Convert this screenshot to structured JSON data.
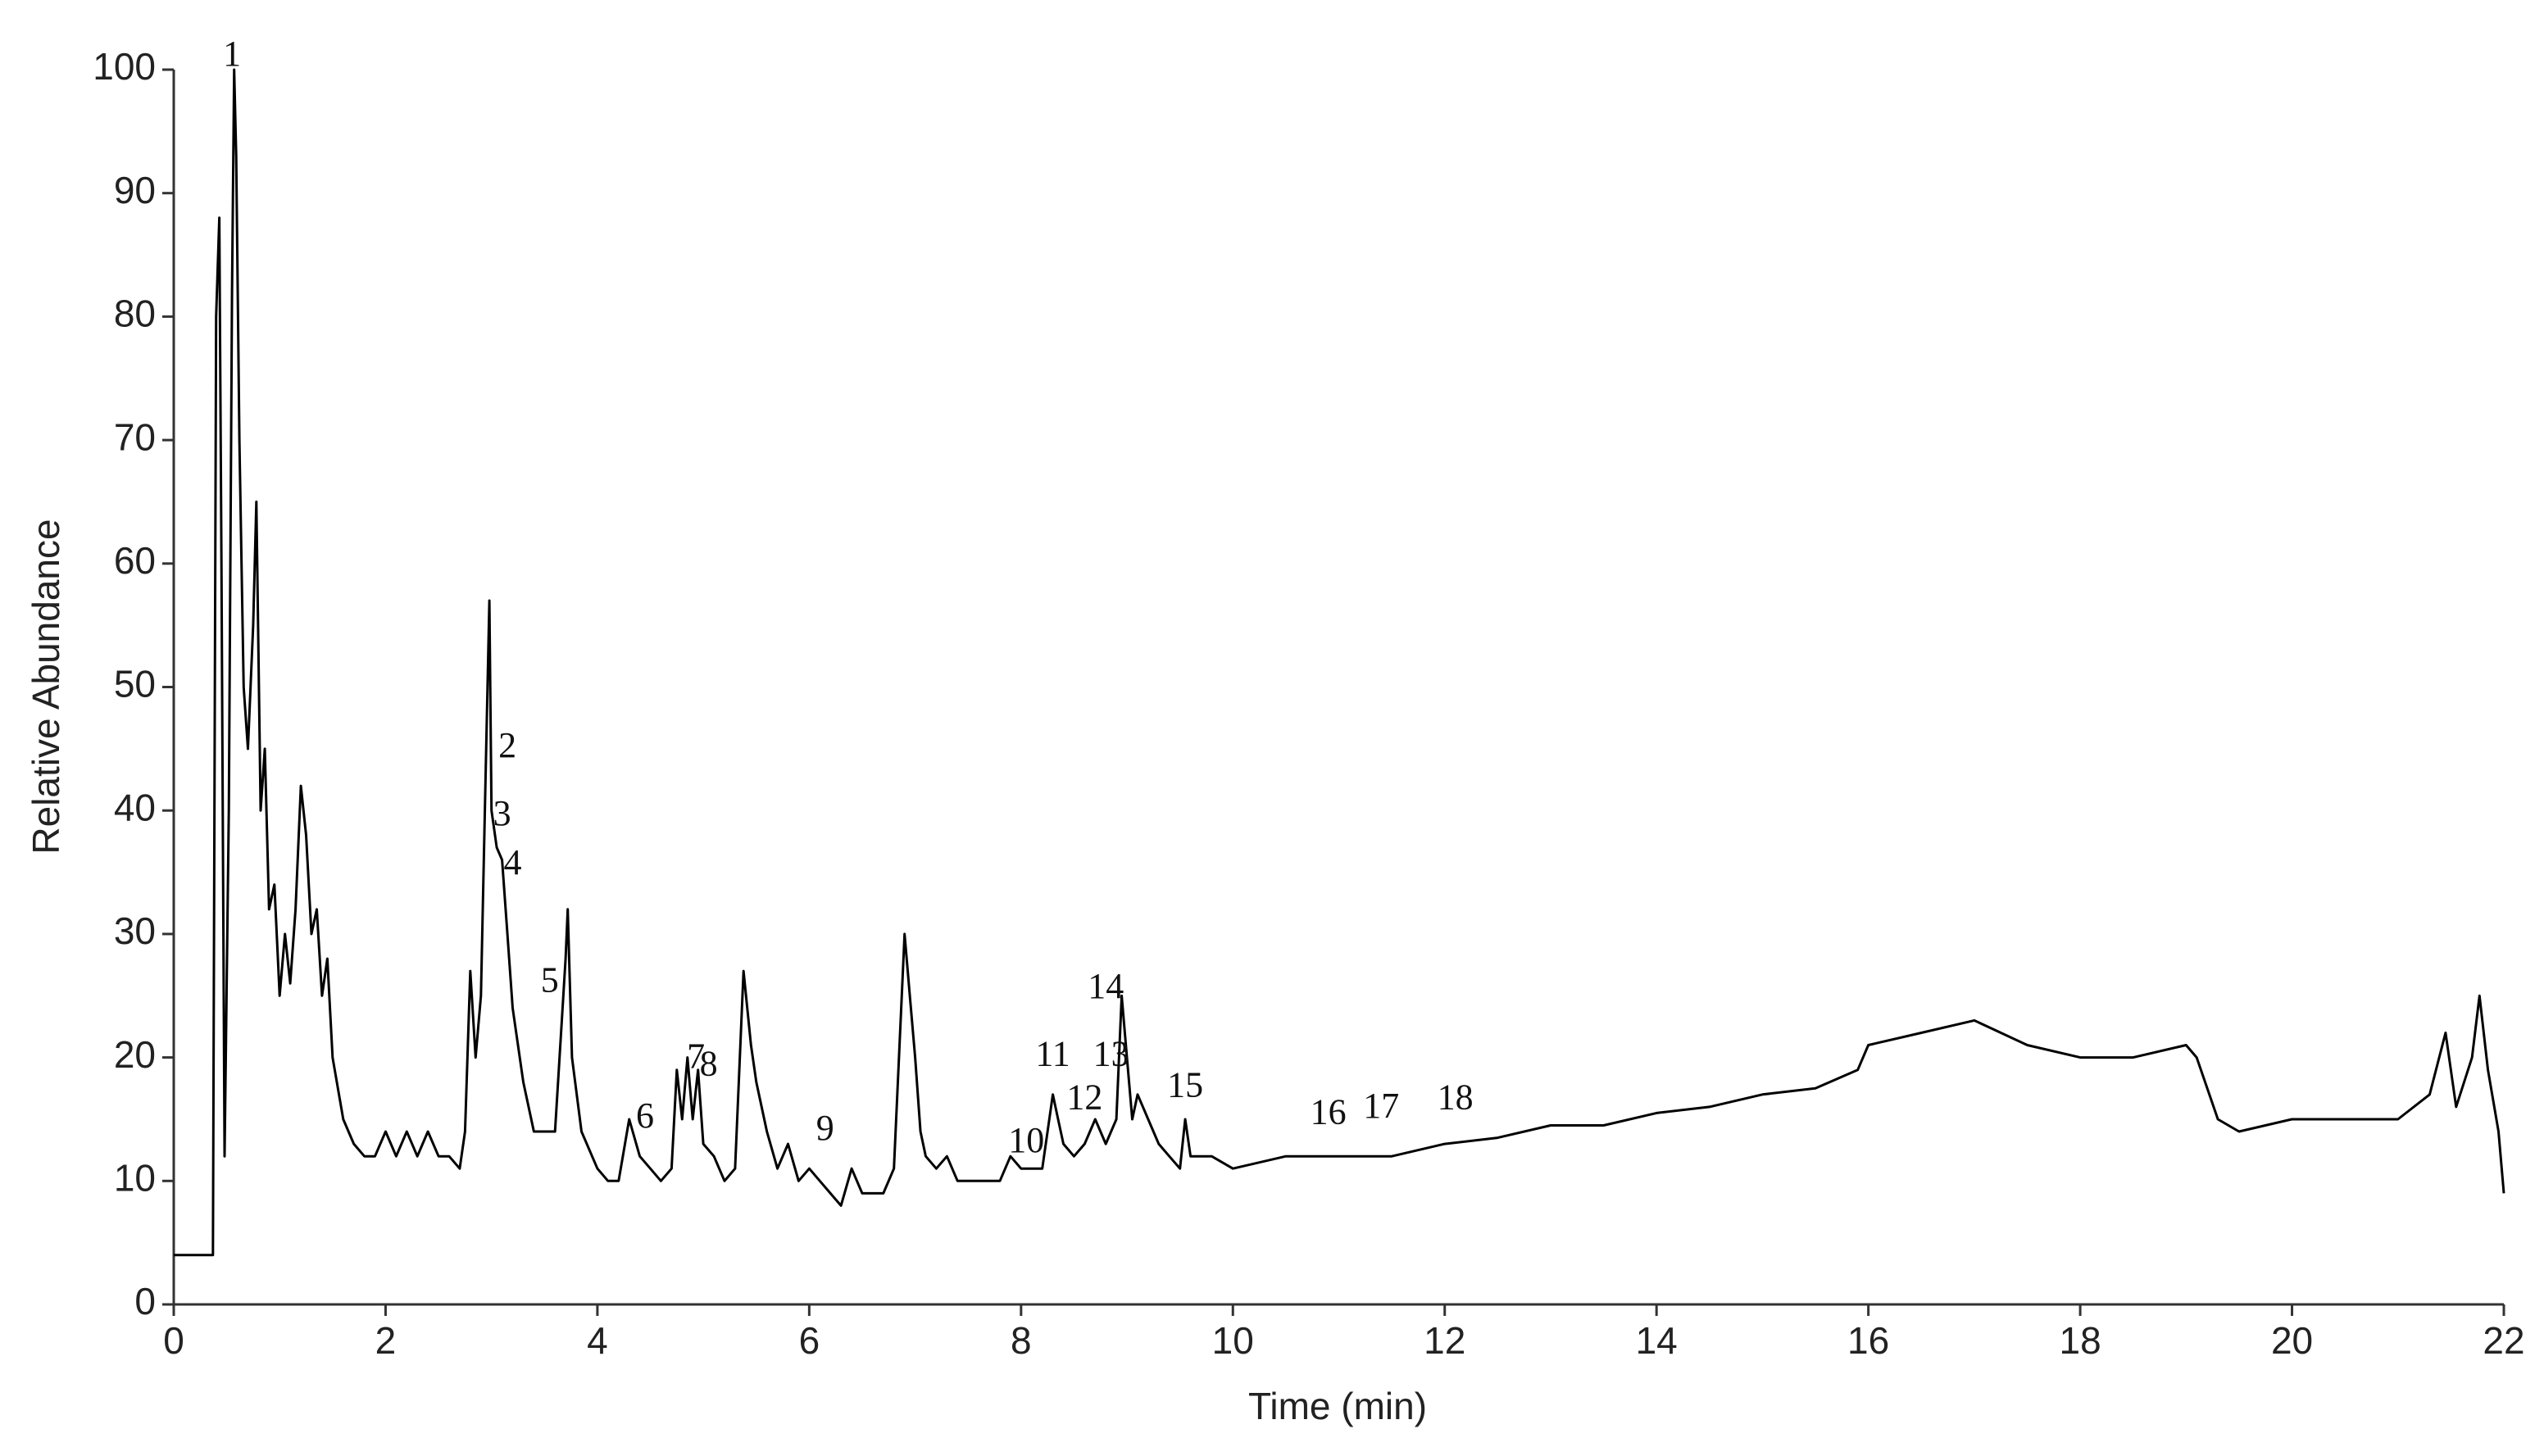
{
  "chart_data": {
    "type": "line",
    "xlabel": "Time (min)",
    "ylabel": "Relative Abundance",
    "color": "#000000",
    "xlim": [
      0,
      22
    ],
    "xticks": [
      0,
      2,
      4,
      6,
      8,
      10,
      12,
      14,
      16,
      18,
      20,
      22
    ],
    "ylim": [
      0,
      100
    ],
    "yticks": [
      0,
      10,
      20,
      30,
      40,
      50,
      60,
      70,
      80,
      90,
      100
    ],
    "x": [
      0,
      0.35,
      0.37,
      0.4,
      0.43,
      0.45,
      0.48,
      0.52,
      0.55,
      0.57,
      0.59,
      0.62,
      0.66,
      0.7,
      0.75,
      0.78,
      0.82,
      0.86,
      0.9,
      0.95,
      1.0,
      1.05,
      1.1,
      1.15,
      1.2,
      1.25,
      1.3,
      1.35,
      1.4,
      1.45,
      1.5,
      1.6,
      1.7,
      1.8,
      1.9,
      2.0,
      2.1,
      2.2,
      2.3,
      2.4,
      2.5,
      2.6,
      2.7,
      2.75,
      2.8,
      2.85,
      2.9,
      2.95,
      2.98,
      3.0,
      3.05,
      3.1,
      3.15,
      3.2,
      3.3,
      3.4,
      3.5,
      3.6,
      3.7,
      3.72,
      3.76,
      3.85,
      4.0,
      4.1,
      4.2,
      4.3,
      4.4,
      4.5,
      4.6,
      4.7,
      4.75,
      4.8,
      4.85,
      4.9,
      4.95,
      5.0,
      5.1,
      5.2,
      5.3,
      5.38,
      5.45,
      5.5,
      5.6,
      5.7,
      5.8,
      5.9,
      6.0,
      6.1,
      6.2,
      6.3,
      6.4,
      6.5,
      6.6,
      6.7,
      6.8,
      6.9,
      6.95,
      7.0,
      7.05,
      7.1,
      7.2,
      7.3,
      7.4,
      7.6,
      7.8,
      7.9,
      8.0,
      8.1,
      8.2,
      8.3,
      8.35,
      8.4,
      8.5,
      8.6,
      8.7,
      8.8,
      8.9,
      8.95,
      9.0,
      9.05,
      9.1,
      9.2,
      9.3,
      9.4,
      9.5,
      9.55,
      9.6,
      9.8,
      10,
      10.5,
      11,
      11.5,
      12,
      12.5,
      13,
      13.5,
      14,
      14.5,
      15,
      15.5,
      15.9,
      16,
      16.5,
      17,
      17.5,
      18,
      18.5,
      19,
      19.1,
      19.3,
      19.5,
      20,
      20.5,
      21,
      21.3,
      21.45,
      21.55,
      21.7,
      21.77,
      21.85,
      21.95,
      22
    ],
    "values": [
      4,
      4,
      4,
      80,
      88,
      60,
      12,
      40,
      82,
      100,
      93,
      70,
      50,
      45,
      55,
      65,
      40,
      45,
      32,
      34,
      25,
      30,
      26,
      32,
      42,
      38,
      30,
      32,
      25,
      28,
      20,
      15,
      13,
      12,
      12,
      14,
      12,
      14,
      12,
      14,
      12,
      12,
      11,
      14,
      27,
      20,
      25,
      45,
      57,
      40,
      37,
      36,
      30,
      24,
      18,
      14,
      14,
      14,
      28,
      32,
      20,
      14,
      11,
      10,
      10,
      15,
      12,
      11,
      10,
      11,
      19,
      15,
      20,
      15,
      19,
      13,
      12,
      10,
      11,
      27,
      21,
      18,
      14,
      11,
      13,
      10,
      11,
      10,
      9,
      8,
      11,
      9,
      9,
      9,
      11,
      30,
      25,
      20,
      14,
      12,
      11,
      12,
      10,
      10,
      10,
      12,
      11,
      11,
      11,
      17,
      15,
      13,
      12,
      13,
      15,
      13,
      15,
      25,
      20,
      15,
      17,
      15,
      13,
      12,
      11,
      15,
      12,
      12,
      11,
      12,
      12,
      12,
      13,
      13.5,
      14.5,
      14.5,
      15.5,
      16,
      17,
      17.5,
      19,
      21,
      22,
      23,
      21,
      20,
      20,
      21,
      20,
      15,
      14,
      15,
      15,
      15,
      17,
      22,
      16,
      20,
      25,
      19,
      14,
      9
    ],
    "annotations": [
      {
        "text": "1",
        "x": 0.55,
        "y": 101
      },
      {
        "text": "2",
        "x": 3.15,
        "y": 45
      },
      {
        "text": "3",
        "x": 3.1,
        "y": 39.5
      },
      {
        "text": "4",
        "x": 3.2,
        "y": 35.5
      },
      {
        "text": "5",
        "x": 3.55,
        "y": 26
      },
      {
        "text": "6",
        "x": 4.45,
        "y": 15
      },
      {
        "text": "7",
        "x": 4.93,
        "y": 19.8
      },
      {
        "text": "8",
        "x": 5.05,
        "y": 19.2
      },
      {
        "text": "9",
        "x": 6.15,
        "y": 14
      },
      {
        "text": "10",
        "x": 8.05,
        "y": 13
      },
      {
        "text": "11",
        "x": 8.3,
        "y": 20
      },
      {
        "text": "12",
        "x": 8.6,
        "y": 16.5
      },
      {
        "text": "13",
        "x": 8.85,
        "y": 20
      },
      {
        "text": "14",
        "x": 8.8,
        "y": 25.5
      },
      {
        "text": "15",
        "x": 9.55,
        "y": 17.5
      },
      {
        "text": "16",
        "x": 10.9,
        "y": 15.3
      },
      {
        "text": "17",
        "x": 11.4,
        "y": 15.8
      },
      {
        "text": "18",
        "x": 12.1,
        "y": 16.5
      }
    ]
  }
}
